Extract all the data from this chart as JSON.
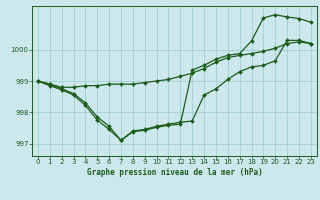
{
  "title": "Graphe pression niveau de la mer (hPa)",
  "background_color": "#cce8ec",
  "grid_color": "#99cccc",
  "line_color": "#1a5c1a",
  "xlim": [
    -0.5,
    23.5
  ],
  "ylim": [
    996.6,
    1001.4
  ],
  "yticks": [
    997,
    998,
    999,
    1000
  ],
  "xticks": [
    0,
    1,
    2,
    3,
    4,
    5,
    6,
    7,
    8,
    9,
    10,
    11,
    12,
    13,
    14,
    15,
    16,
    17,
    18,
    19,
    20,
    21,
    22,
    23
  ],
  "line1_x": [
    0,
    1,
    2,
    3,
    4,
    5,
    6,
    7,
    8,
    9,
    10,
    11,
    12,
    13,
    14,
    15,
    16,
    17,
    18,
    19,
    20,
    21,
    22,
    23
  ],
  "line1_y": [
    999.0,
    998.9,
    998.8,
    998.8,
    998.85,
    998.85,
    998.9,
    998.9,
    998.9,
    998.95,
    999.0,
    999.05,
    999.15,
    999.25,
    999.4,
    999.6,
    999.75,
    999.82,
    999.88,
    999.95,
    1000.05,
    1000.2,
    1000.25,
    1000.2
  ],
  "line2_x": [
    0,
    1,
    2,
    3,
    4,
    5,
    6,
    7,
    8,
    9,
    10,
    11,
    12,
    13,
    14,
    15,
    16,
    17,
    18,
    19,
    20,
    21,
    22,
    23
  ],
  "line2_y": [
    999.0,
    998.9,
    998.75,
    998.6,
    998.3,
    997.85,
    997.55,
    997.1,
    997.4,
    997.45,
    997.55,
    997.62,
    997.68,
    997.72,
    998.55,
    998.75,
    999.05,
    999.3,
    999.45,
    999.5,
    999.65,
    1000.3,
    1000.3,
    1000.2
  ],
  "line3_x": [
    0,
    1,
    2,
    3,
    4,
    5,
    6,
    7,
    8,
    9,
    10,
    11,
    12,
    13,
    14,
    15,
    16,
    17,
    18,
    19,
    20,
    21,
    22,
    23
  ],
  "line3_y": [
    999.0,
    998.85,
    998.72,
    998.55,
    998.22,
    997.75,
    997.45,
    997.1,
    997.38,
    997.42,
    997.52,
    997.58,
    997.62,
    999.35,
    999.5,
    999.7,
    999.82,
    999.88,
    1000.28,
    1001.02,
    1001.12,
    1001.05,
    1001.0,
    1000.88
  ]
}
